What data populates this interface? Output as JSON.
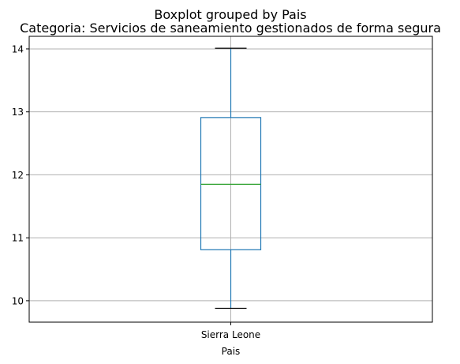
{
  "chart_data": {
    "type": "boxplot",
    "suptitle": "Boxplot grouped by Pais",
    "title": "Categoria: Servicios de saneamiento gestionados de forma segura",
    "xlabel": "Pais",
    "ylabel": "",
    "categories": [
      "Sierra Leone"
    ],
    "boxes": [
      {
        "category": "Sierra Leone",
        "whisker_low": 9.88,
        "q1": 10.81,
        "median": 11.85,
        "q3": 12.91,
        "whisker_high": 14.01
      }
    ],
    "ylim": [
      9.66,
      14.2
    ],
    "yticks": [
      10,
      11,
      12,
      13,
      14
    ],
    "grid": true,
    "colors": {
      "box": "#1f77b4",
      "median": "#2ca02c",
      "whisker_cap": "#000000",
      "grid": "#b0b0b0"
    }
  }
}
